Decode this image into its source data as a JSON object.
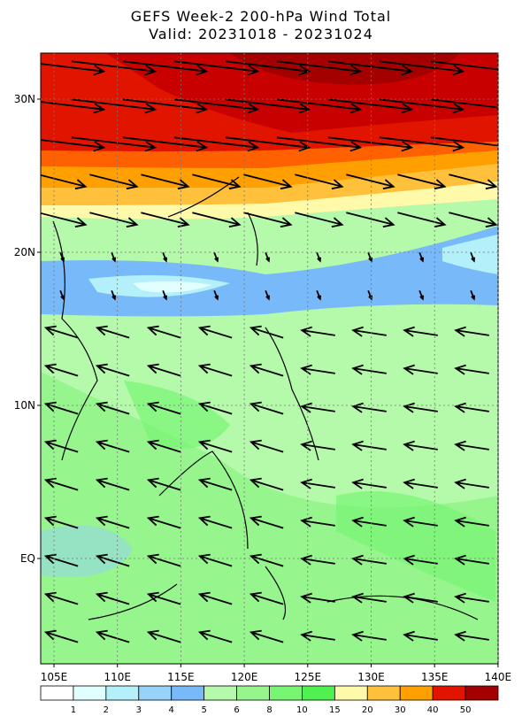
{
  "header": {
    "title": "GEFS Week-2 200-hPa Wind Total",
    "subtitle": "Valid: 20231018 - 20231024"
  },
  "axes": {
    "lat_labels": [
      "30N",
      "20N",
      "10N",
      "EQ"
    ],
    "lon_labels": [
      "105E",
      "110E",
      "115E",
      "120E",
      "125E",
      "130E",
      "135E",
      "140E"
    ]
  },
  "colorbar": {
    "labels": [
      "1",
      "2",
      "3",
      "4",
      "5",
      "6",
      "8",
      "10",
      "15",
      "20",
      "30",
      "40",
      "50"
    ],
    "colors": [
      "#ffffff",
      "#e1ffff",
      "#b4f0fa",
      "#96d2fa",
      "#78b9fa",
      "#b4faaa",
      "#96f58c",
      "#78f573",
      "#50f050",
      "#fffaaa",
      "#ffc03c",
      "#ffa000",
      "#e11400",
      "#a50000"
    ]
  }
}
